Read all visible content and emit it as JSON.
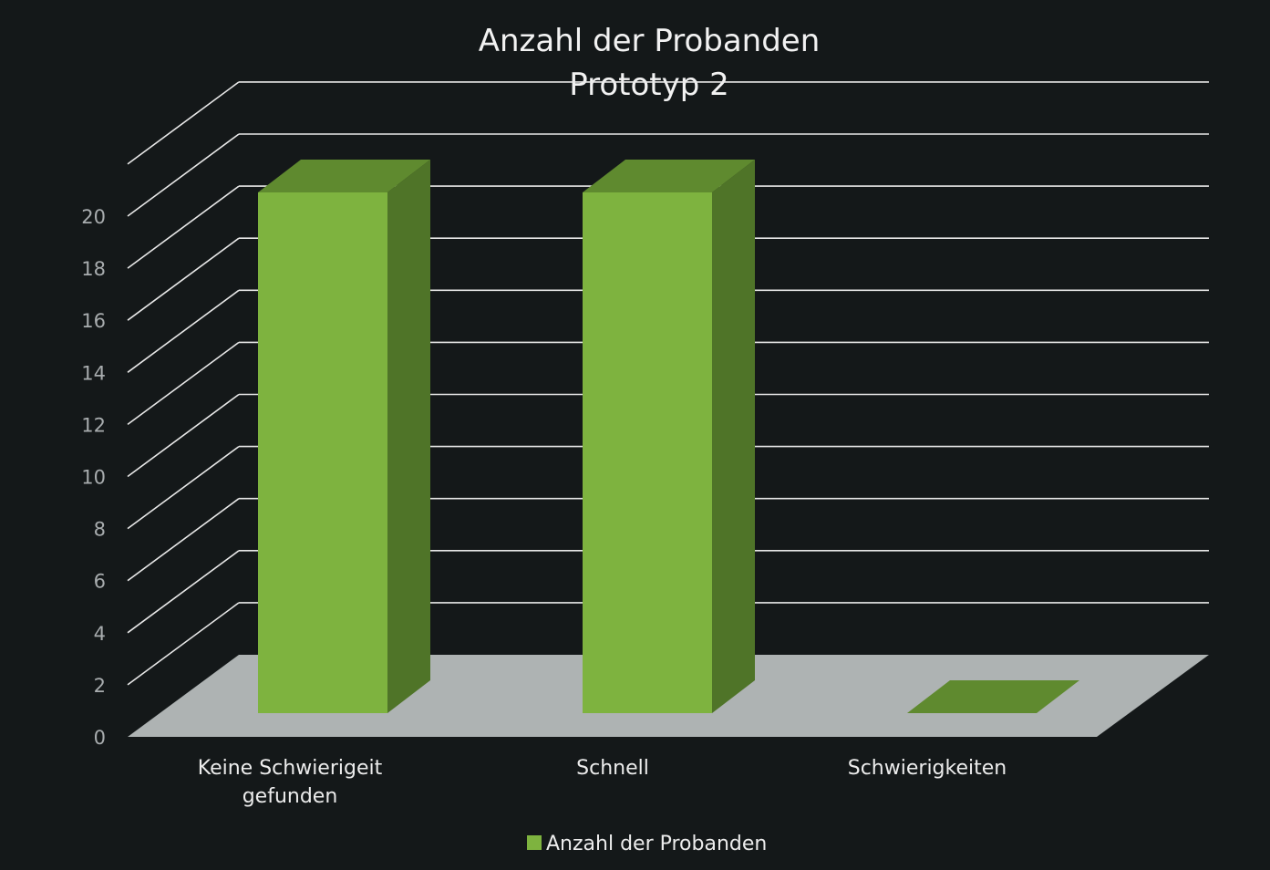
{
  "chart_data": {
    "type": "bar",
    "title": [
      "Anzahl der Probanden",
      "Prototyp 2"
    ],
    "categories": [
      [
        "Keine Schwierigeit",
        "gefunden"
      ],
      [
        "Schnell"
      ],
      [
        "Schwierigkeiten"
      ]
    ],
    "series": [
      {
        "name": "Anzahl der Probanden",
        "values": [
          20,
          20,
          0
        ],
        "color": "#7eb33f"
      }
    ],
    "y_ticks": [
      "0",
      "2",
      "4",
      "6",
      "8",
      "10",
      "12",
      "14",
      "16",
      "18",
      "20"
    ],
    "ylim": [
      0,
      20
    ],
    "grid": true,
    "legend_position": "bottom",
    "style": "3d-column",
    "colors": {
      "background": "#141819",
      "floor": "#aeb3b3",
      "bar_front": "#7eb33f",
      "bar_top": "#5f8a2f",
      "bar_side": "#4f7428",
      "grid": "#e8e8e8"
    }
  }
}
